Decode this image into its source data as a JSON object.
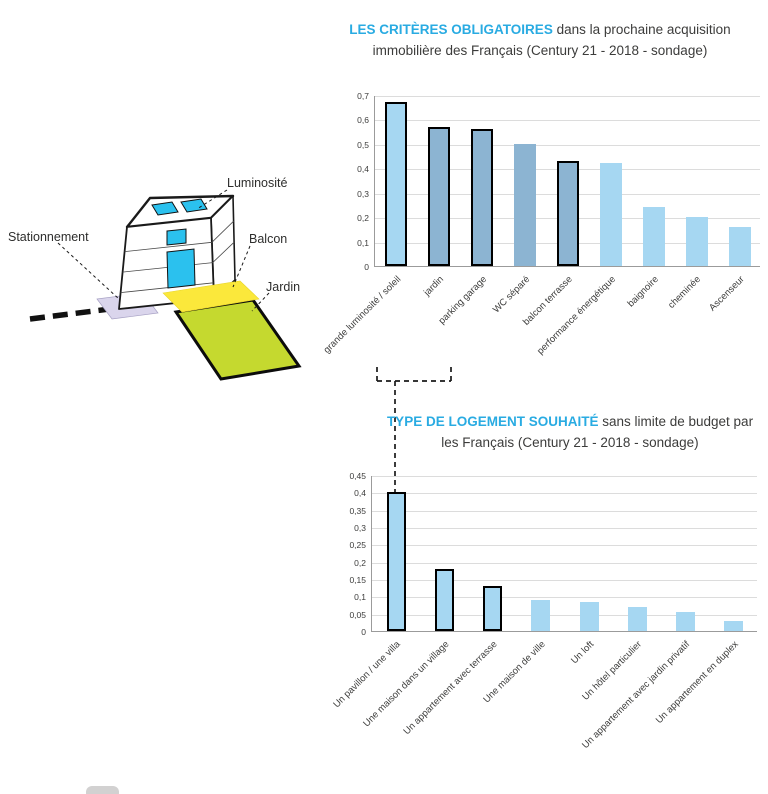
{
  "colors": {
    "accent": "#29ABE2",
    "text": "#3C3C3B"
  },
  "chart_style": {
    "bar_light": "#A6D7F2",
    "bar_dark": "#8CB4D2",
    "outline_color": "#000000",
    "grid_color": "#DCDCDC",
    "axis_color": "#9B9B9B",
    "label_color": "#3C3C3B"
  },
  "diagram": {
    "labels": {
      "luminosite": "Luminosité",
      "stationnement": "Stationnement",
      "balcon": "Balcon",
      "jardin": "Jardin"
    },
    "colors": {
      "window": "#2BC1EE",
      "balcony": "#FBE83B",
      "garden": "#C5D92F",
      "parking": "#DAD5EC",
      "face": "#FFFFFF"
    }
  },
  "chart_data": [
    {
      "type": "bar",
      "title_accent": "LES CRITÈRES OBLIGATOIRES",
      "title_rest": " dans la prochaine acquisition immobilière des Français (Century 21 - 2018 - sondage)",
      "categories": [
        "grande luminosité / soleil",
        "jardin",
        "parking garage",
        "WC séparé",
        "balcon terrasse",
        "performance énergétique",
        "baignoire",
        "cheminée",
        "Ascenseur"
      ],
      "values": [
        0.67,
        0.57,
        0.56,
        0.5,
        0.43,
        0.42,
        0.24,
        0.2,
        0.16
      ],
      "dark": [
        false,
        true,
        true,
        true,
        true,
        false,
        false,
        false,
        false
      ],
      "outlined": [
        true,
        true,
        true,
        false,
        true,
        false,
        false,
        false,
        false
      ],
      "ylim": [
        0,
        0.7
      ],
      "tick_step": 0.1,
      "grid": true,
      "legend": "none",
      "xlabel": "",
      "ylabel": ""
    },
    {
      "type": "bar",
      "title_accent": "TYPE DE LOGEMENT SOUHAITÉ",
      "title_rest": " sans limite de budget par les Français (Century 21 - 2018 - sondage)",
      "categories": [
        "Un pavillon / une villa",
        "Une maison dans un village",
        "Un appartement avec terrasse",
        "Une maison de ville",
        "Un loft",
        "Un hôtel particulier",
        "Un appartement avec jardin privatif",
        "Un appartement en duplex"
      ],
      "values": [
        0.4,
        0.18,
        0.13,
        0.09,
        0.085,
        0.07,
        0.055,
        0.03
      ],
      "dark": [
        false,
        false,
        false,
        false,
        false,
        false,
        false,
        false
      ],
      "outlined": [
        true,
        true,
        true,
        false,
        false,
        false,
        false,
        false
      ],
      "ylim": [
        0,
        0.45
      ],
      "tick_step": 0.05,
      "grid": true,
      "legend": "none",
      "xlabel": "",
      "ylabel": ""
    }
  ]
}
